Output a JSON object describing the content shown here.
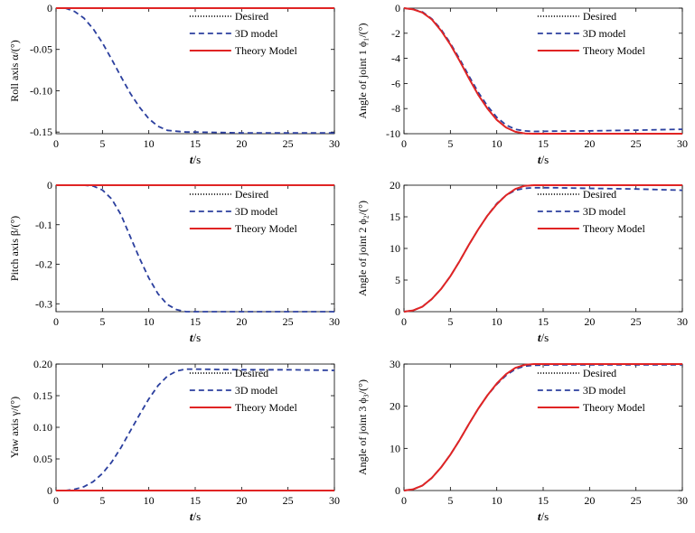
{
  "chart_data": [
    {
      "type": "line",
      "xlabel_main": "t",
      "xlabel_unit": "/s",
      "ylabel": "Roll axis α/(°)",
      "xlim": [
        0,
        30
      ],
      "ylim": [
        -0.152,
        0.0
      ],
      "xticks": [
        0,
        5,
        10,
        15,
        20,
        25,
        30
      ],
      "xtick_labels": [
        "0",
        "5",
        "10",
        "15",
        "20",
        "25",
        "30"
      ],
      "yticks": [
        0,
        -0.05,
        -0.1,
        -0.15
      ],
      "ytick_labels": [
        "0",
        "-0.05",
        "-0.10",
        "-0.15"
      ],
      "legend_position": "top-right",
      "legend": [
        "Desired",
        "3D model",
        "Theory Model"
      ],
      "series": [
        {
          "name": "Desired",
          "color": "#000000",
          "style": "dotted",
          "x": [
            0,
            30
          ],
          "y": [
            0,
            0
          ]
        },
        {
          "name": "3D model",
          "color": "#2b3f9e",
          "style": "dashed",
          "x": [
            0,
            1,
            2,
            3,
            4,
            5,
            6,
            7,
            8,
            9,
            10,
            11,
            12,
            13,
            14,
            15,
            20,
            25,
            30
          ],
          "y": [
            0,
            0,
            -0.004,
            -0.012,
            -0.025,
            -0.042,
            -0.062,
            -0.083,
            -0.103,
            -0.12,
            -0.134,
            -0.143,
            -0.148,
            -0.149,
            -0.15,
            -0.15,
            -0.151,
            -0.151,
            -0.151
          ]
        },
        {
          "name": "Theory Model",
          "color": "#e02424",
          "style": "solid",
          "x": [
            0,
            30
          ],
          "y": [
            0,
            0
          ]
        }
      ]
    },
    {
      "type": "line",
      "xlabel_main": "t",
      "xlabel_unit": "/s",
      "ylabel": "Angle of joint 1 ϕ₁/(°)",
      "xlim": [
        0,
        30
      ],
      "ylim": [
        -10,
        0
      ],
      "xticks": [
        0,
        5,
        10,
        15,
        20,
        25,
        30
      ],
      "xtick_labels": [
        "0",
        "5",
        "10",
        "15",
        "20",
        "25",
        "30"
      ],
      "yticks": [
        0,
        -2,
        -4,
        -6,
        -8,
        -10
      ],
      "ytick_labels": [
        "0",
        "-2",
        "-4",
        "-6",
        "-8",
        "-10"
      ],
      "legend_position": "top-right",
      "legend": [
        "Desired",
        "3D model",
        "Theory Model"
      ],
      "series": [
        {
          "name": "Desired",
          "color": "#000000",
          "style": "dotted",
          "x": [
            0,
            1,
            2,
            3,
            4,
            5,
            6,
            7,
            8,
            9,
            10,
            11,
            12,
            13,
            14,
            30
          ],
          "y": [
            0,
            -0.1,
            -0.35,
            -0.9,
            -1.8,
            -2.9,
            -4.2,
            -5.6,
            -6.9,
            -8.0,
            -8.9,
            -9.5,
            -9.85,
            -9.98,
            -10,
            -10
          ]
        },
        {
          "name": "3D model",
          "color": "#2b3f9e",
          "style": "dashed",
          "x": [
            0,
            1,
            2,
            3,
            4,
            5,
            6,
            7,
            8,
            9,
            10,
            11,
            12,
            13,
            14,
            16,
            20,
            25,
            30
          ],
          "y": [
            0,
            -0.1,
            -0.3,
            -0.85,
            -1.7,
            -2.8,
            -4.05,
            -5.4,
            -6.7,
            -7.8,
            -8.7,
            -9.3,
            -9.65,
            -9.78,
            -9.82,
            -9.8,
            -9.78,
            -9.72,
            -9.65
          ]
        },
        {
          "name": "Theory Model",
          "color": "#e02424",
          "style": "solid",
          "x": [
            0,
            1,
            2,
            3,
            4,
            5,
            6,
            7,
            8,
            9,
            10,
            11,
            12,
            13,
            14,
            30
          ],
          "y": [
            0,
            -0.1,
            -0.35,
            -0.9,
            -1.8,
            -2.9,
            -4.2,
            -5.6,
            -6.9,
            -8.0,
            -8.9,
            -9.5,
            -9.85,
            -9.98,
            -10,
            -10
          ]
        }
      ]
    },
    {
      "type": "line",
      "xlabel_main": "t",
      "xlabel_unit": "/s",
      "ylabel": "Pitch axis β/(°)",
      "xlim": [
        0,
        30
      ],
      "ylim": [
        -0.32,
        0.0
      ],
      "xticks": [
        0,
        5,
        10,
        15,
        20,
        25,
        30
      ],
      "xtick_labels": [
        "0",
        "5",
        "10",
        "15",
        "20",
        "25",
        "30"
      ],
      "yticks": [
        0,
        -0.1,
        -0.2,
        -0.3
      ],
      "ytick_labels": [
        "0",
        "-0.1",
        "-0.2",
        "-0.3"
      ],
      "legend_position": "top-right",
      "legend": [
        "Desired",
        "3D model",
        "Theory Model"
      ],
      "series": [
        {
          "name": "Desired",
          "color": "#000000",
          "style": "dotted",
          "x": [
            0,
            30
          ],
          "y": [
            0,
            0
          ]
        },
        {
          "name": "3D model",
          "color": "#2b3f9e",
          "style": "dashed",
          "x": [
            0,
            3,
            4,
            5,
            6,
            7,
            8,
            9,
            10,
            11,
            12,
            13,
            14,
            15,
            20,
            25,
            30
          ],
          "y": [
            0,
            0,
            -0.002,
            -0.012,
            -0.035,
            -0.075,
            -0.13,
            -0.185,
            -0.235,
            -0.275,
            -0.302,
            -0.315,
            -0.32,
            -0.32,
            -0.32,
            -0.32,
            -0.32
          ]
        },
        {
          "name": "Theory Model",
          "color": "#e02424",
          "style": "solid",
          "x": [
            0,
            30
          ],
          "y": [
            0,
            0
          ]
        }
      ]
    },
    {
      "type": "line",
      "xlabel_main": "t",
      "xlabel_unit": "/s",
      "ylabel": "Angle of joint 2 ϕ₂/(°)",
      "xlim": [
        0,
        30
      ],
      "ylim": [
        0,
        20
      ],
      "xticks": [
        0,
        5,
        10,
        15,
        20,
        25,
        30
      ],
      "xtick_labels": [
        "0",
        "5",
        "10",
        "15",
        "20",
        "25",
        "30"
      ],
      "yticks": [
        0,
        5,
        10,
        15,
        20
      ],
      "ytick_labels": [
        "0",
        "5",
        "10",
        "15",
        "20"
      ],
      "legend_position": "top-right",
      "legend": [
        "Desired",
        "3D model",
        "Theory Model"
      ],
      "series": [
        {
          "name": "Desired",
          "color": "#000000",
          "style": "dotted",
          "x": [
            0,
            1,
            2,
            3,
            4,
            5,
            6,
            7,
            8,
            9,
            10,
            11,
            12,
            13,
            14,
            30
          ],
          "y": [
            0,
            0.2,
            0.8,
            2.0,
            3.6,
            5.6,
            8.0,
            10.6,
            13.0,
            15.2,
            17.0,
            18.4,
            19.4,
            19.9,
            20,
            20
          ]
        },
        {
          "name": "3D model",
          "color": "#2b3f9e",
          "style": "dashed",
          "x": [
            0,
            1,
            2,
            3,
            4,
            5,
            6,
            7,
            8,
            9,
            10,
            11,
            12,
            13,
            14,
            16,
            20,
            25,
            30
          ],
          "y": [
            0,
            0.2,
            0.8,
            2.0,
            3.6,
            5.6,
            8.0,
            10.6,
            13.0,
            15.2,
            17.1,
            18.4,
            19.2,
            19.5,
            19.6,
            19.6,
            19.5,
            19.4,
            19.2
          ]
        },
        {
          "name": "Theory Model",
          "color": "#e02424",
          "style": "solid",
          "x": [
            0,
            1,
            2,
            3,
            4,
            5,
            6,
            7,
            8,
            9,
            10,
            11,
            12,
            13,
            14,
            30
          ],
          "y": [
            0,
            0.2,
            0.8,
            2.0,
            3.6,
            5.6,
            8.0,
            10.6,
            13.0,
            15.2,
            17.0,
            18.4,
            19.4,
            19.9,
            20,
            20
          ]
        }
      ]
    },
    {
      "type": "line",
      "xlabel_main": "t",
      "xlabel_unit": "/s",
      "ylabel": "Yaw axis γ/(°)",
      "xlim": [
        0,
        30
      ],
      "ylim": [
        0,
        0.2
      ],
      "xticks": [
        0,
        5,
        10,
        15,
        20,
        25,
        30
      ],
      "xtick_labels": [
        "0",
        "5",
        "10",
        "15",
        "20",
        "25",
        "30"
      ],
      "yticks": [
        0,
        0.05,
        0.1,
        0.15,
        0.2
      ],
      "ytick_labels": [
        "0",
        "0.05",
        "0.10",
        "0.15",
        "0.20"
      ],
      "legend_position": "top-right",
      "legend": [
        "Desired",
        "3D model",
        "Theory Model"
      ],
      "series": [
        {
          "name": "Desired",
          "color": "#000000",
          "style": "dotted",
          "x": [
            0,
            30
          ],
          "y": [
            0,
            0
          ]
        },
        {
          "name": "3D model",
          "color": "#2b3f9e",
          "style": "dashed",
          "x": [
            0,
            1,
            2,
            3,
            4,
            5,
            6,
            7,
            8,
            9,
            10,
            11,
            12,
            13,
            14,
            15,
            20,
            25,
            30
          ],
          "y": [
            0,
            0,
            0.002,
            0.006,
            0.014,
            0.027,
            0.045,
            0.068,
            0.094,
            0.12,
            0.145,
            0.166,
            0.181,
            0.189,
            0.192,
            0.192,
            0.191,
            0.191,
            0.19
          ]
        },
        {
          "name": "Theory Model",
          "color": "#e02424",
          "style": "solid",
          "x": [
            0,
            30
          ],
          "y": [
            0,
            0
          ]
        }
      ]
    },
    {
      "type": "line",
      "xlabel_main": "t",
      "xlabel_unit": "/s",
      "ylabel": "Angle of joint 3 ϕ₃/(°)",
      "xlim": [
        0,
        30
      ],
      "ylim": [
        0,
        30
      ],
      "xticks": [
        0,
        5,
        10,
        15,
        20,
        25,
        30
      ],
      "xtick_labels": [
        "0",
        "5",
        "10",
        "15",
        "20",
        "25",
        "30"
      ],
      "yticks": [
        0,
        10,
        20,
        30
      ],
      "ytick_labels": [
        "0",
        "10",
        "20",
        "30"
      ],
      "legend_position": "top-right",
      "legend": [
        "Desired",
        "3D model",
        "Theory Model"
      ],
      "series": [
        {
          "name": "Desired",
          "color": "#000000",
          "style": "dotted",
          "x": [
            0,
            1,
            2,
            3,
            4,
            5,
            6,
            7,
            8,
            9,
            10,
            11,
            12,
            13,
            14,
            30
          ],
          "y": [
            0,
            0.3,
            1.2,
            3.0,
            5.5,
            8.5,
            12.0,
            15.8,
            19.4,
            22.6,
            25.4,
            27.6,
            29.1,
            29.8,
            30,
            30
          ]
        },
        {
          "name": "3D model",
          "color": "#2b3f9e",
          "style": "dashed",
          "x": [
            0,
            1,
            2,
            3,
            4,
            5,
            6,
            7,
            8,
            9,
            10,
            11,
            12,
            13,
            14,
            16,
            20,
            25,
            30
          ],
          "y": [
            0,
            0.3,
            1.2,
            3.0,
            5.5,
            8.5,
            12.0,
            15.8,
            19.4,
            22.6,
            25.2,
            27.3,
            28.8,
            29.5,
            29.7,
            29.8,
            29.8,
            29.8,
            29.8
          ]
        },
        {
          "name": "Theory Model",
          "color": "#e02424",
          "style": "solid",
          "x": [
            0,
            1,
            2,
            3,
            4,
            5,
            6,
            7,
            8,
            9,
            10,
            11,
            12,
            13,
            14,
            30
          ],
          "y": [
            0,
            0.3,
            1.2,
            3.0,
            5.5,
            8.5,
            12.0,
            15.8,
            19.4,
            22.6,
            25.4,
            27.6,
            29.1,
            29.8,
            30,
            30
          ]
        }
      ]
    }
  ]
}
